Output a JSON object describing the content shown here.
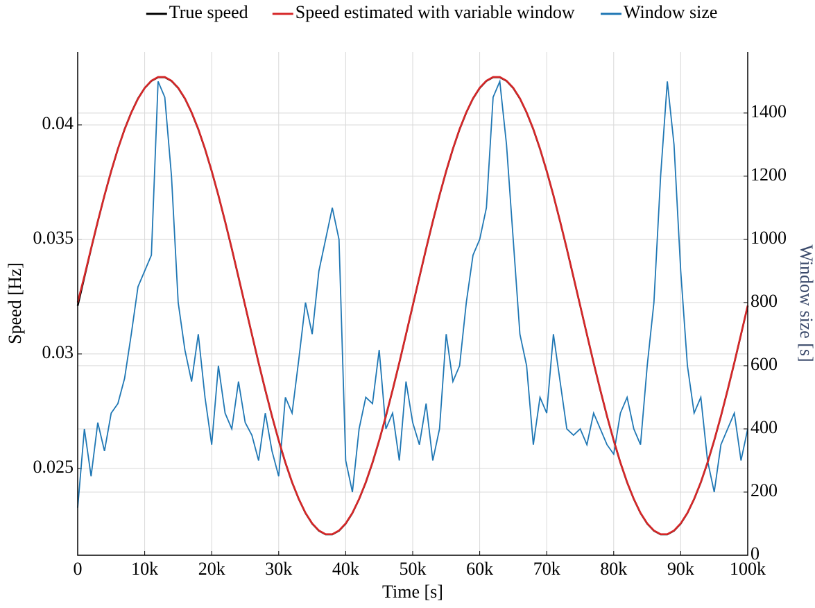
{
  "chart_data": {
    "type": "line",
    "xlabel": "Time [s]",
    "ylabel": "Speed [Hz]",
    "y2label": "Window size [s]",
    "x": [
      0,
      1000,
      2000,
      3000,
      4000,
      5000,
      6000,
      7000,
      8000,
      9000,
      10000,
      11000,
      12000,
      13000,
      14000,
      15000,
      16000,
      17000,
      18000,
      19000,
      20000,
      21000,
      22000,
      23000,
      24000,
      25000,
      26000,
      27000,
      28000,
      29000,
      30000,
      31000,
      32000,
      33000,
      34000,
      35000,
      36000,
      37000,
      38000,
      39000,
      40000,
      41000,
      42000,
      43000,
      44000,
      45000,
      46000,
      47000,
      48000,
      49000,
      50000,
      51000,
      52000,
      53000,
      54000,
      55000,
      56000,
      57000,
      58000,
      59000,
      60000,
      61000,
      62000,
      63000,
      64000,
      65000,
      66000,
      67000,
      68000,
      69000,
      70000,
      71000,
      72000,
      73000,
      74000,
      75000,
      76000,
      77000,
      78000,
      79000,
      80000,
      81000,
      82000,
      83000,
      84000,
      85000,
      86000,
      87000,
      88000,
      89000,
      90000,
      91000,
      92000,
      93000,
      94000,
      95000,
      96000,
      97000,
      98000,
      99000,
      100000
    ],
    "series": [
      {
        "name": "True speed",
        "color": "#000000",
        "values": [
          0.0321,
          0.03335,
          0.03459,
          0.03578,
          0.03692,
          0.03798,
          0.03895,
          0.03981,
          0.04054,
          0.04115,
          0.04161,
          0.04192,
          0.04208,
          0.04208,
          0.04192,
          0.04161,
          0.04115,
          0.04054,
          0.03981,
          0.03895,
          0.03798,
          0.03692,
          0.03578,
          0.03459,
          0.03335,
          0.0321,
          0.03085,
          0.02961,
          0.02842,
          0.02728,
          0.02622,
          0.02525,
          0.02439,
          0.02366,
          0.02305,
          0.02259,
          0.02228,
          0.02212,
          0.02212,
          0.02228,
          0.02259,
          0.02305,
          0.02366,
          0.02439,
          0.02525,
          0.02622,
          0.02728,
          0.02842,
          0.02961,
          0.03085,
          0.0321,
          0.03335,
          0.03459,
          0.03578,
          0.03692,
          0.03798,
          0.03895,
          0.03981,
          0.04054,
          0.04115,
          0.04161,
          0.04192,
          0.04208,
          0.04208,
          0.04192,
          0.04161,
          0.04115,
          0.04054,
          0.03981,
          0.03895,
          0.03798,
          0.03692,
          0.03578,
          0.03459,
          0.03335,
          0.0321,
          0.03085,
          0.02961,
          0.02842,
          0.02728,
          0.02622,
          0.02525,
          0.02439,
          0.02366,
          0.02305,
          0.02259,
          0.02228,
          0.02212,
          0.02212,
          0.02228,
          0.02259,
          0.02305,
          0.02366,
          0.02439,
          0.02525,
          0.02622,
          0.02728,
          0.02842,
          0.02961,
          0.03085,
          0.0321
        ]
      },
      {
        "name": "Speed estimated with variable window",
        "color": "#d62728",
        "values": [
          0.03225,
          0.0334,
          0.03461,
          0.03579,
          0.03692,
          0.03798,
          0.03895,
          0.0398,
          0.04053,
          0.04114,
          0.04161,
          0.04193,
          0.04209,
          0.04209,
          0.04193,
          0.04162,
          0.04116,
          0.04055,
          0.03982,
          0.03896,
          0.03799,
          0.03693,
          0.03579,
          0.0346,
          0.03336,
          0.03211,
          0.03086,
          0.02962,
          0.02843,
          0.02729,
          0.02623,
          0.02526,
          0.0244,
          0.02367,
          0.02306,
          0.0226,
          0.02229,
          0.02213,
          0.02213,
          0.02229,
          0.0226,
          0.02306,
          0.02367,
          0.0244,
          0.02526,
          0.02623,
          0.02729,
          0.02843,
          0.02962,
          0.03086,
          0.03211,
          0.03336,
          0.0346,
          0.03579,
          0.03693,
          0.03799,
          0.03896,
          0.03982,
          0.04055,
          0.04116,
          0.04162,
          0.04193,
          0.04209,
          0.04209,
          0.04193,
          0.04162,
          0.04116,
          0.04055,
          0.03982,
          0.03896,
          0.03799,
          0.03693,
          0.03579,
          0.0346,
          0.03336,
          0.03211,
          0.03086,
          0.02962,
          0.02843,
          0.02729,
          0.02623,
          0.02526,
          0.0244,
          0.02367,
          0.02306,
          0.0226,
          0.02229,
          0.02213,
          0.02213,
          0.02229,
          0.0226,
          0.02306,
          0.02367,
          0.0244,
          0.02526,
          0.02623,
          0.02729,
          0.02843,
          0.02962,
          0.03086,
          0.03211
        ]
      },
      {
        "name": "Window size",
        "color": "#1f77b4",
        "axis": "y2",
        "values": [
          150,
          400,
          250,
          420,
          330,
          450,
          480,
          560,
          700,
          850,
          900,
          950,
          1500,
          1450,
          1200,
          800,
          650,
          550,
          700,
          500,
          350,
          600,
          450,
          400,
          550,
          420,
          380,
          300,
          450,
          330,
          250,
          500,
          450,
          620,
          800,
          700,
          900,
          1000,
          1100,
          1000,
          300,
          200,
          400,
          500,
          480,
          650,
          400,
          450,
          300,
          550,
          420,
          350,
          480,
          300,
          400,
          700,
          550,
          600,
          800,
          950,
          1000,
          1100,
          1450,
          1500,
          1300,
          1000,
          700,
          600,
          350,
          500,
          450,
          700,
          550,
          400,
          380,
          400,
          350,
          450,
          400,
          350,
          320,
          450,
          500,
          400,
          350,
          600,
          800,
          1200,
          1500,
          1300,
          900,
          600,
          450,
          500,
          300,
          200,
          350,
          400,
          450,
          300,
          400
        ]
      }
    ],
    "xlim": [
      0,
      100000
    ],
    "xticks": [
      0,
      {
        "value": 10000,
        "label": "10k"
      },
      {
        "value": 20000,
        "label": "20k"
      },
      {
        "value": 30000,
        "label": "30k"
      },
      {
        "value": 40000,
        "label": "40k"
      },
      {
        "value": 50000,
        "label": "50k"
      },
      {
        "value": 60000,
        "label": "60k"
      },
      {
        "value": 70000,
        "label": "70k"
      },
      {
        "value": 80000,
        "label": "80k"
      },
      {
        "value": 90000,
        "label": "90k"
      },
      {
        "value": 100000,
        "label": "100k"
      }
    ],
    "ylim": [
      0.02121,
      0.04318
    ],
    "yticks": [
      0.025,
      0.03,
      0.035,
      0.04
    ],
    "y2lim": [
      0,
      1593
    ],
    "y2ticks": [
      0,
      200,
      400,
      600,
      800,
      1000,
      1200,
      1400
    ],
    "grid": true,
    "legend": "top"
  }
}
